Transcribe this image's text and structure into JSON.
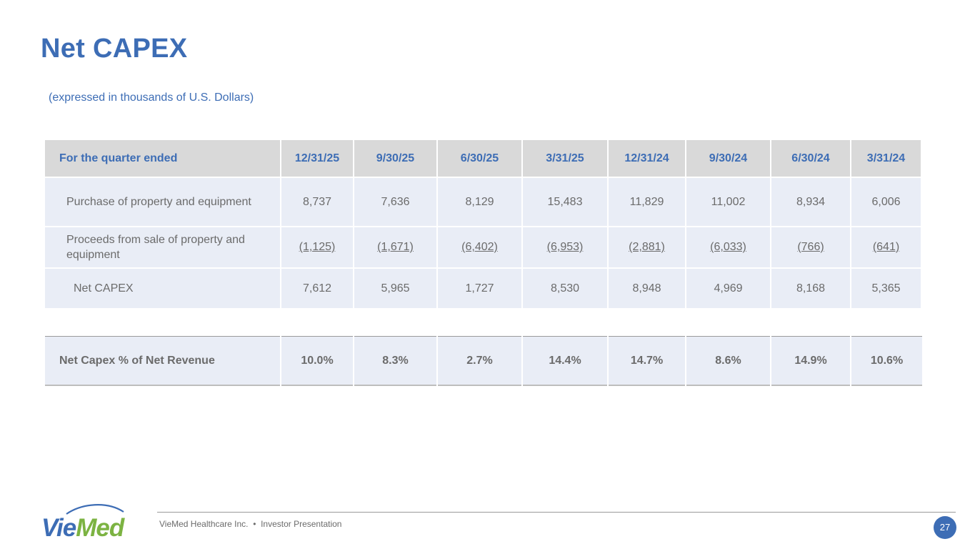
{
  "title": "Net CAPEX",
  "subtitle": "(expressed in thousands of U.S. Dollars)",
  "table": {
    "header_label": "For the quarter ended",
    "periods": [
      "12/31/25",
      "9/30/25",
      "6/30/25",
      "3/31/25",
      "12/31/24",
      "9/30/24",
      "6/30/24",
      "3/31/24"
    ],
    "rows": [
      {
        "label": "Purchase of property and equipment",
        "values": [
          "8,737",
          "7,636",
          "8,129",
          "15,483",
          "11,829",
          "11,002",
          "8,934",
          "6,006"
        ]
      },
      {
        "label": "Proceeds from sale of property and equipment",
        "values": [
          "(1,125)",
          "(1,671)",
          "(6,402)",
          "(6,953)",
          "(2,881)",
          "(6,033)",
          "(766)",
          "(641)"
        ]
      },
      {
        "label": "Net CAPEX",
        "values": [
          "7,612",
          "5,965",
          "1,727",
          "8,530",
          "8,948",
          "4,969",
          "8,168",
          "5,365"
        ]
      }
    ]
  },
  "ratio": {
    "label": "Net Capex % of Net Revenue",
    "values": [
      "10.0%",
      "8.3%",
      "2.7%",
      "14.4%",
      "14.7%",
      "8.6%",
      "14.9%",
      "10.6%"
    ]
  },
  "footer": {
    "company": "VieMed Healthcare Inc.",
    "separator": "•",
    "document": "Investor Presentation",
    "page_number": "27"
  },
  "logo_text": "VieMed",
  "colors": {
    "accent": "#3d6db5",
    "logo_green": "#7cb342",
    "header_bg": "#d9d9d9",
    "row_bg": "#e9edf6"
  }
}
